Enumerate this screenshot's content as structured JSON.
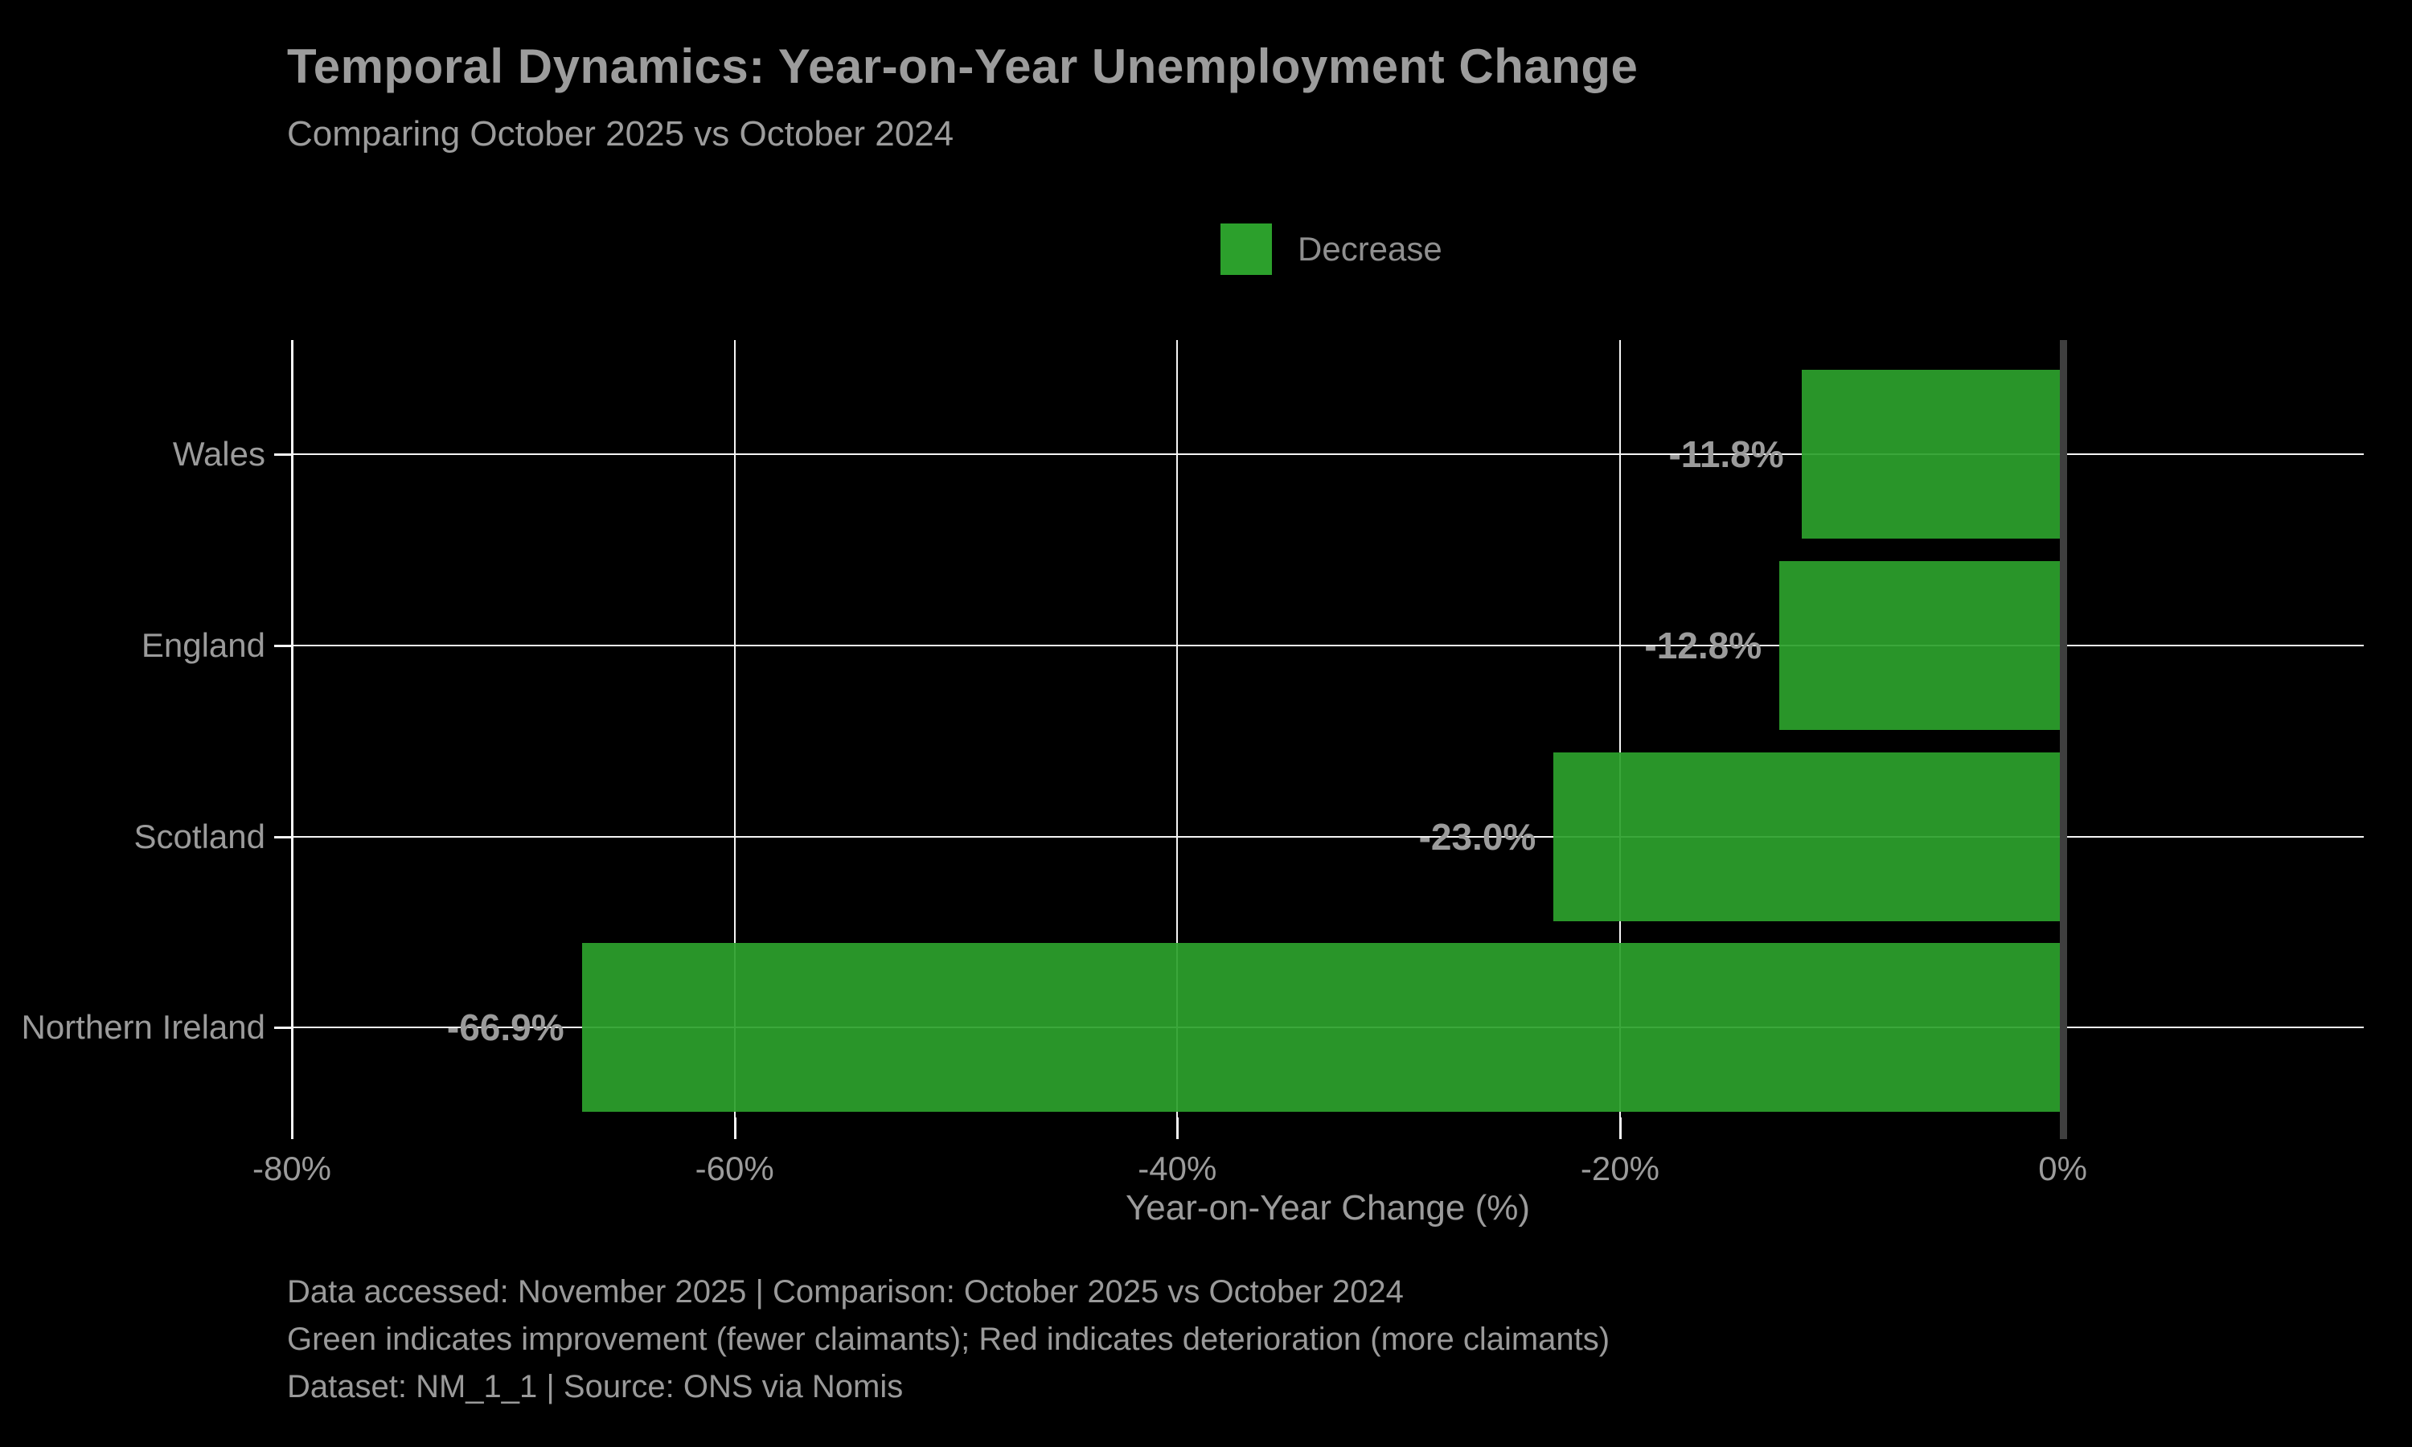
{
  "header": {
    "title": "Temporal Dynamics: Year-on-Year Unemployment Change",
    "subtitle": "Comparing October 2025 vs October 2024"
  },
  "legend": {
    "label": "Decrease",
    "swatch_color": "#2ca02c"
  },
  "chart_data": {
    "type": "bar",
    "orientation": "horizontal",
    "title": "Temporal Dynamics: Year-on-Year Unemployment Change",
    "subtitle": "Comparing October 2025 vs October 2024",
    "categories": [
      "Wales",
      "England",
      "Scotland",
      "Northern Ireland"
    ],
    "values": [
      -11.8,
      -12.8,
      -23.0,
      -66.9
    ],
    "value_labels": [
      "-11.8%",
      "-12.8%",
      "-23.0%",
      "-66.9%"
    ],
    "bar_color": "#2ca02c",
    "xlabel": "Year-on-Year Change (%)",
    "ylabel": "",
    "xlim": [
      -80,
      13.6
    ],
    "xticks": [
      -80,
      -60,
      -40,
      -20,
      0
    ],
    "xtick_labels": [
      "-80%",
      "-60%",
      "-40%",
      "-20%",
      "0%"
    ],
    "grid": true,
    "background_color": "#000000",
    "gridline_color": "#f5f5f5",
    "zero_line_color": "#3f3f3f",
    "text_color": "#9b9b9b",
    "legend_entries": [
      "Decrease"
    ],
    "legend_position": "upper-center"
  },
  "footer": {
    "lines": [
      "Data accessed: November 2025 | Comparison: October 2025 vs October 2024",
      "Green indicates improvement (fewer claimants); Red indicates deterioration (more claimants)",
      "Dataset: NM_1_1 | Source: ONS via Nomis"
    ]
  }
}
